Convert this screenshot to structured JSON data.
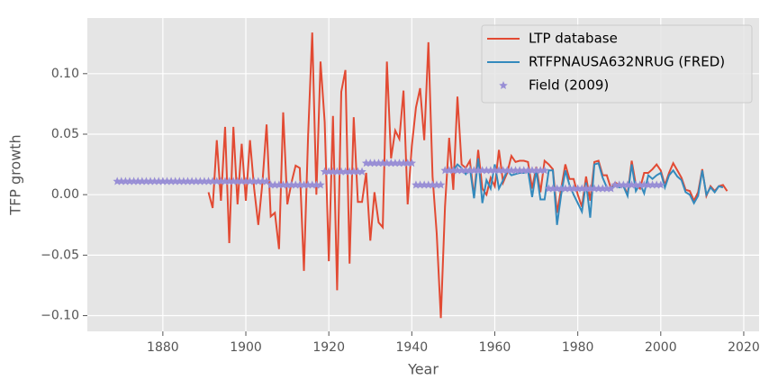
{
  "chart_data": {
    "type": "line",
    "xlabel": "Year",
    "ylabel": "TFP growth",
    "xlim": [
      1861.8,
      2023.7
    ],
    "ylim": [
      -0.113,
      0.146
    ],
    "xticks": [
      1880,
      1900,
      1920,
      1940,
      1960,
      1980,
      2000,
      2020
    ],
    "yticks": [
      {
        "value": -0.1,
        "label": "−0.10"
      },
      {
        "value": -0.05,
        "label": "−0.05"
      },
      {
        "value": 0,
        "label": "0.00"
      },
      {
        "value": 0.05,
        "label": "0.05"
      },
      {
        "value": 0.1,
        "label": "0.10"
      }
    ],
    "grid": true,
    "legend": "upper right",
    "series": [
      {
        "name": "LTP database",
        "color": "#e24a33",
        "type": "line",
        "x": [
          1891,
          1892,
          1893,
          1894,
          1895,
          1896,
          1897,
          1898,
          1899,
          1900,
          1901,
          1902,
          1903,
          1904,
          1905,
          1906,
          1907,
          1908,
          1909,
          1910,
          1911,
          1912,
          1913,
          1914,
          1915,
          1916,
          1917,
          1918,
          1919,
          1920,
          1921,
          1922,
          1923,
          1924,
          1925,
          1926,
          1927,
          1928,
          1929,
          1930,
          1931,
          1932,
          1933,
          1934,
          1935,
          1936,
          1937,
          1938,
          1939,
          1940,
          1941,
          1942,
          1943,
          1944,
          1945,
          1946,
          1947,
          1948,
          1949,
          1950,
          1951,
          1952,
          1953,
          1954,
          1955,
          1956,
          1957,
          1958,
          1959,
          1960,
          1961,
          1962,
          1963,
          1964,
          1965,
          1966,
          1967,
          1968,
          1969,
          1970,
          1971,
          1972,
          1973,
          1974,
          1975,
          1976,
          1977,
          1978,
          1979,
          1980,
          1981,
          1982,
          1983,
          1984,
          1985,
          1986,
          1987,
          1988,
          1989,
          1990,
          1991,
          1992,
          1993,
          1994,
          1995,
          1996,
          1997,
          1998,
          1999,
          2000,
          2001,
          2002,
          2003,
          2004,
          2005,
          2006,
          2007,
          2008,
          2009,
          2010,
          2011,
          2012,
          2013,
          2014,
          2015,
          2016
        ],
        "values": [
          0.002,
          -0.011,
          0.045,
          -0.005,
          0.056,
          -0.04,
          0.056,
          -0.008,
          0.042,
          -0.005,
          0.045,
          0.005,
          -0.025,
          0.01,
          0.058,
          -0.018,
          -0.015,
          -0.045,
          0.068,
          -0.008,
          0.01,
          0.024,
          0.022,
          -0.063,
          0.048,
          0.134,
          0.0,
          0.11,
          0.06,
          -0.055,
          0.065,
          -0.079,
          0.085,
          0.103,
          -0.057,
          0.064,
          -0.006,
          -0.006,
          0.018,
          -0.038,
          0.002,
          -0.023,
          -0.027,
          0.11,
          0.03,
          0.053,
          0.046,
          0.086,
          -0.008,
          0.04,
          0.072,
          0.088,
          0.045,
          0.126,
          0.015,
          -0.032,
          -0.102,
          -0.01,
          0.047,
          0.004,
          0.081,
          0.025,
          0.022,
          0.028,
          -0.002,
          0.037,
          0.005,
          0.0,
          0.014,
          0.007,
          0.037,
          0.01,
          0.018,
          0.032,
          0.027,
          0.028,
          0.028,
          0.027,
          0.005,
          0.023,
          0.002,
          0.028,
          0.025,
          0.021,
          -0.015,
          0.005,
          0.025,
          0.013,
          0.013,
          0.0,
          -0.01,
          0.015,
          -0.005,
          0.027,
          0.028,
          0.016,
          0.016,
          0.005,
          0.01,
          0.008,
          0.008,
          0.0,
          0.028,
          0.008,
          0.005,
          0.018,
          0.018,
          0.021,
          0.025,
          0.02,
          0.008,
          0.018,
          0.026,
          0.02,
          0.014,
          0.004,
          0.003,
          -0.005,
          0.002,
          0.021,
          -0.001,
          0.007,
          0.003,
          0.007,
          0.008,
          0.003
        ]
      },
      {
        "name": "RTFPNAUSA632NRUG (FRED)",
        "color": "#348abd",
        "type": "line",
        "x": [
          1950,
          1951,
          1952,
          1953,
          1954,
          1955,
          1956,
          1957,
          1958,
          1959,
          1960,
          1961,
          1962,
          1963,
          1964,
          1965,
          1966,
          1967,
          1968,
          1969,
          1970,
          1971,
          1972,
          1973,
          1974,
          1975,
          1976,
          1977,
          1978,
          1979,
          1980,
          1981,
          1982,
          1983,
          1984,
          1985,
          1986,
          1987,
          1988,
          1989,
          1990,
          1991,
          1992,
          1993,
          1994,
          1995,
          1996,
          1997,
          1998,
          1999,
          2000,
          2001,
          2002,
          2003,
          2004,
          2005,
          2006,
          2007,
          2008,
          2009,
          2010,
          2011,
          2012,
          2013,
          2014,
          2015
        ],
        "values": [
          0.02,
          0.025,
          0.022,
          0.017,
          0.022,
          -0.003,
          0.03,
          -0.007,
          0.012,
          0.005,
          0.025,
          0.005,
          0.012,
          0.02,
          0.016,
          0.017,
          0.018,
          0.018,
          0.02,
          -0.002,
          0.02,
          -0.004,
          -0.004,
          0.02,
          0.02,
          -0.025,
          0.0,
          0.02,
          0.008,
          0.0,
          -0.007,
          -0.014,
          0.01,
          -0.019,
          0.025,
          0.026,
          0.014,
          0.006,
          0.005,
          0.008,
          0.006,
          0.007,
          -0.001,
          0.025,
          0.003,
          0.009,
          0.001,
          0.016,
          0.013,
          0.016,
          0.018,
          0.006,
          0.016,
          0.02,
          0.015,
          0.012,
          0.002,
          0.0,
          -0.007,
          -0.001,
          0.02,
          0.0,
          0.006,
          0.002,
          0.007,
          0.006
        ]
      },
      {
        "name": "Field (2009)",
        "color": "#988ed5",
        "type": "scatter",
        "x": [
          1869,
          1870,
          1871,
          1872,
          1873,
          1874,
          1875,
          1876,
          1877,
          1878,
          1879,
          1880,
          1881,
          1882,
          1883,
          1884,
          1885,
          1886,
          1887,
          1888,
          1889,
          1890,
          1891,
          1892,
          1893,
          1894,
          1895,
          1896,
          1897,
          1898,
          1899,
          1900,
          1901,
          1902,
          1903,
          1904,
          1905,
          1906,
          1907,
          1908,
          1909,
          1910,
          1911,
          1912,
          1913,
          1914,
          1915,
          1916,
          1917,
          1918,
          1919,
          1920,
          1921,
          1922,
          1923,
          1924,
          1925,
          1926,
          1927,
          1928,
          1929,
          1930,
          1931,
          1932,
          1933,
          1934,
          1935,
          1936,
          1937,
          1938,
          1939,
          1940,
          1941,
          1942,
          1943,
          1944,
          1945,
          1946,
          1947,
          1948,
          1949,
          1950,
          1951,
          1952,
          1953,
          1954,
          1955,
          1956,
          1957,
          1958,
          1959,
          1960,
          1961,
          1962,
          1963,
          1964,
          1965,
          1966,
          1967,
          1968,
          1969,
          1970,
          1971,
          1972,
          1973,
          1974,
          1975,
          1976,
          1977,
          1978,
          1979,
          1980,
          1981,
          1982,
          1983,
          1984,
          1985,
          1986,
          1987,
          1988,
          1989,
          1990,
          1991,
          1992,
          1993,
          1994,
          1995,
          1996,
          1997,
          1998,
          1999,
          2000
        ],
        "values": [
          0.011,
          0.011,
          0.011,
          0.011,
          0.011,
          0.011,
          0.011,
          0.011,
          0.011,
          0.011,
          0.011,
          0.011,
          0.011,
          0.011,
          0.011,
          0.011,
          0.011,
          0.011,
          0.011,
          0.011,
          0.011,
          0.011,
          0.011,
          0.011,
          0.011,
          0.011,
          0.011,
          0.011,
          0.011,
          0.011,
          0.011,
          0.011,
          0.011,
          0.011,
          0.011,
          0.011,
          0.011,
          0.008,
          0.008,
          0.008,
          0.008,
          0.008,
          0.008,
          0.008,
          0.008,
          0.008,
          0.008,
          0.008,
          0.008,
          0.008,
          0.019,
          0.019,
          0.019,
          0.019,
          0.019,
          0.019,
          0.019,
          0.019,
          0.019,
          0.019,
          0.026,
          0.026,
          0.026,
          0.026,
          0.026,
          0.026,
          0.026,
          0.026,
          0.026,
          0.026,
          0.026,
          0.026,
          0.008,
          0.008,
          0.008,
          0.008,
          0.008,
          0.008,
          0.008,
          0.02,
          0.02,
          0.02,
          0.02,
          0.02,
          0.02,
          0.02,
          0.02,
          0.02,
          0.02,
          0.02,
          0.02,
          0.02,
          0.02,
          0.02,
          0.02,
          0.02,
          0.02,
          0.02,
          0.02,
          0.02,
          0.02,
          0.02,
          0.02,
          0.02,
          0.005,
          0.005,
          0.005,
          0.005,
          0.005,
          0.005,
          0.005,
          0.005,
          0.005,
          0.005,
          0.005,
          0.005,
          0.005,
          0.005,
          0.005,
          0.005,
          0.008,
          0.008,
          0.008,
          0.008,
          0.008,
          0.008,
          0.008,
          0.008,
          0.008,
          0.008,
          0.008,
          0.008
        ]
      }
    ]
  }
}
